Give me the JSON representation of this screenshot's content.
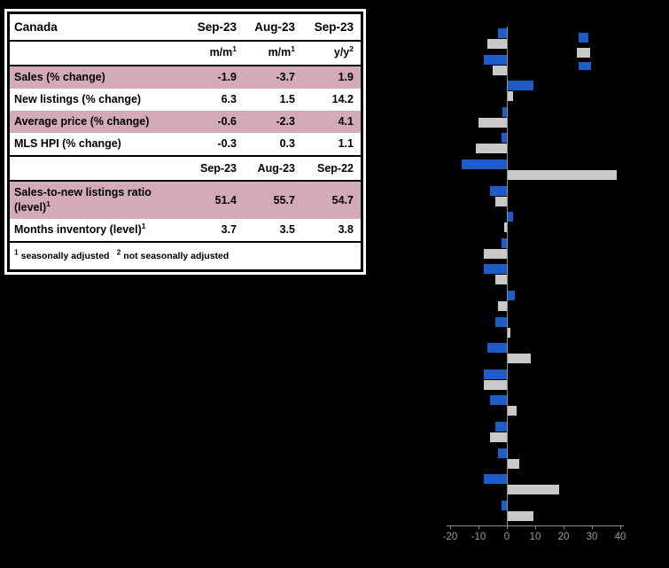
{
  "table": {
    "title": "Canada",
    "period_headers": [
      "Sep-23",
      "Aug-23",
      "Sep-23"
    ],
    "unit_headers": [
      {
        "base": "m/m",
        "sup": "1"
      },
      {
        "base": "m/m",
        "sup": "1"
      },
      {
        "base": "y/y",
        "sup": "2"
      }
    ],
    "rows": [
      {
        "label": "Sales (% change)",
        "sup": "",
        "values": [
          "-1.9",
          "-3.7",
          "1.9"
        ],
        "highlight": true
      },
      {
        "label": "New listings (% change)",
        "sup": "",
        "values": [
          "6.3",
          "1.5",
          "14.2"
        ],
        "highlight": false
      },
      {
        "label": "Average price (% change)",
        "sup": "",
        "values": [
          "-0.6",
          "-2.3",
          "4.1"
        ],
        "highlight": true
      },
      {
        "label": "MLS HPI (% change)",
        "sup": "",
        "values": [
          "-0.3",
          "0.3",
          "1.1"
        ],
        "highlight": false
      }
    ],
    "period_headers_2": [
      "Sep-23",
      "Aug-23",
      "Sep-22"
    ],
    "rows_2": [
      {
        "label": "Sales-to-new listings ratio (level)",
        "sup": "1",
        "values": [
          "51.4",
          "55.7",
          "54.7"
        ],
        "highlight": true
      },
      {
        "label": "Months inventory (level)",
        "sup": "1",
        "values": [
          "3.7",
          "3.5",
          "3.8"
        ],
        "highlight": false
      }
    ],
    "footnote": [
      {
        "sup": "1",
        "text": "seasonally adjusted"
      },
      {
        "sup": "2",
        "text": "not seasonally adjusted"
      }
    ],
    "highlight_color": "#d3aab8"
  },
  "chart_data": {
    "type": "bar",
    "orientation": "horizontal",
    "xlim": [
      -21,
      41
    ],
    "xticks": [
      "-20",
      "-10",
      "0",
      "10",
      "20",
      "30",
      "40"
    ],
    "tick_values": [
      -20,
      -10,
      0,
      10,
      20,
      30,
      40
    ],
    "grid": false,
    "category_labels_visible": false,
    "legend": {
      "position": "top-right",
      "swatches": [
        "blue",
        "gray",
        "blue"
      ]
    },
    "series": [
      {
        "name": "blue-series",
        "color": "#1e5cc8",
        "values": [
          -3,
          -8,
          9,
          -1.5,
          -2,
          -16,
          -6,
          2,
          -2,
          -8,
          2.5,
          -4,
          -7,
          -8,
          -6,
          -4,
          -3,
          -8,
          -2
        ]
      },
      {
        "name": "gray-series",
        "color": "#c9c9c9",
        "values": [
          -7,
          -5,
          2,
          -10,
          -11,
          38.5,
          -4,
          -1,
          -8,
          -4,
          -3,
          1,
          8,
          -8,
          3,
          -6,
          4,
          18,
          9
        ]
      }
    ],
    "axis_color": "#8f8f8f",
    "tick_label_color": "#9b9b9b"
  }
}
